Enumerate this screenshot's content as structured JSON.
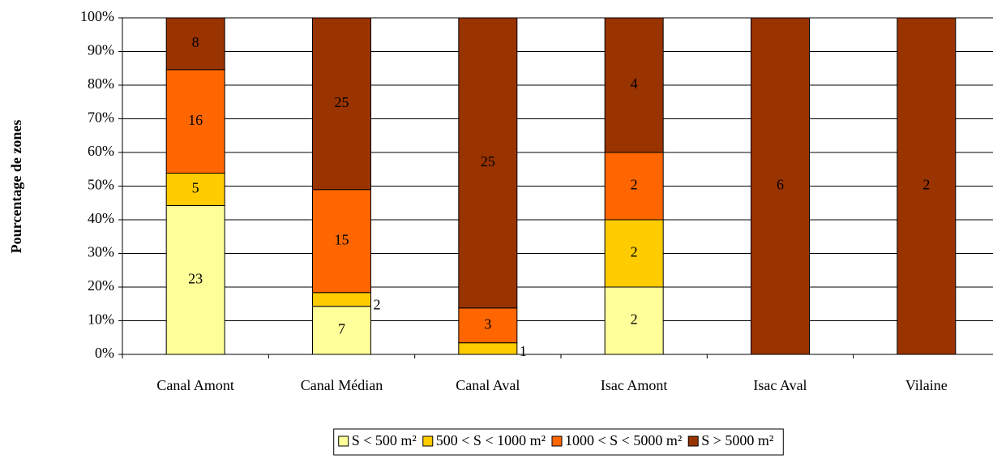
{
  "chart_data": {
    "type": "bar",
    "stacked": "percent",
    "y_label": "Pourcentage de zones",
    "categories": [
      "Canal Amont",
      "Canal Médian",
      "Canal Aval",
      "Isac Amont",
      "Isac Aval",
      "Vilaine"
    ],
    "series": [
      {
        "name": "S < 500 m²",
        "color": "#ffff99",
        "values": [
          23,
          7,
          0,
          2,
          0,
          0
        ]
      },
      {
        "name": "500 < S < 1000 m²",
        "color": "#ffcc00",
        "values": [
          5,
          2,
          1,
          2,
          0,
          0
        ]
      },
      {
        "name": "1000 < S < 5000 m²",
        "color": "#ff6600",
        "values": [
          16,
          15,
          3,
          2,
          0,
          0
        ]
      },
      {
        "name": "S > 5000 m²",
        "color": "#993300",
        "values": [
          8,
          25,
          25,
          4,
          6,
          2
        ]
      }
    ],
    "ylim": [
      0,
      100
    ],
    "yticks": [
      {
        "value": 0,
        "label": "0%"
      },
      {
        "value": 10,
        "label": "10%"
      },
      {
        "value": 20,
        "label": "20%"
      },
      {
        "value": 30,
        "label": "30%"
      },
      {
        "value": 40,
        "label": "40%"
      },
      {
        "value": 50,
        "label": "50%"
      },
      {
        "value": 60,
        "label": "60%"
      },
      {
        "value": 70,
        "label": "70%"
      },
      {
        "value": 80,
        "label": "80%"
      },
      {
        "value": 90,
        "label": "90%"
      },
      {
        "value": 100,
        "label": "100%"
      }
    ],
    "grid": true,
    "legend": "bottom"
  }
}
